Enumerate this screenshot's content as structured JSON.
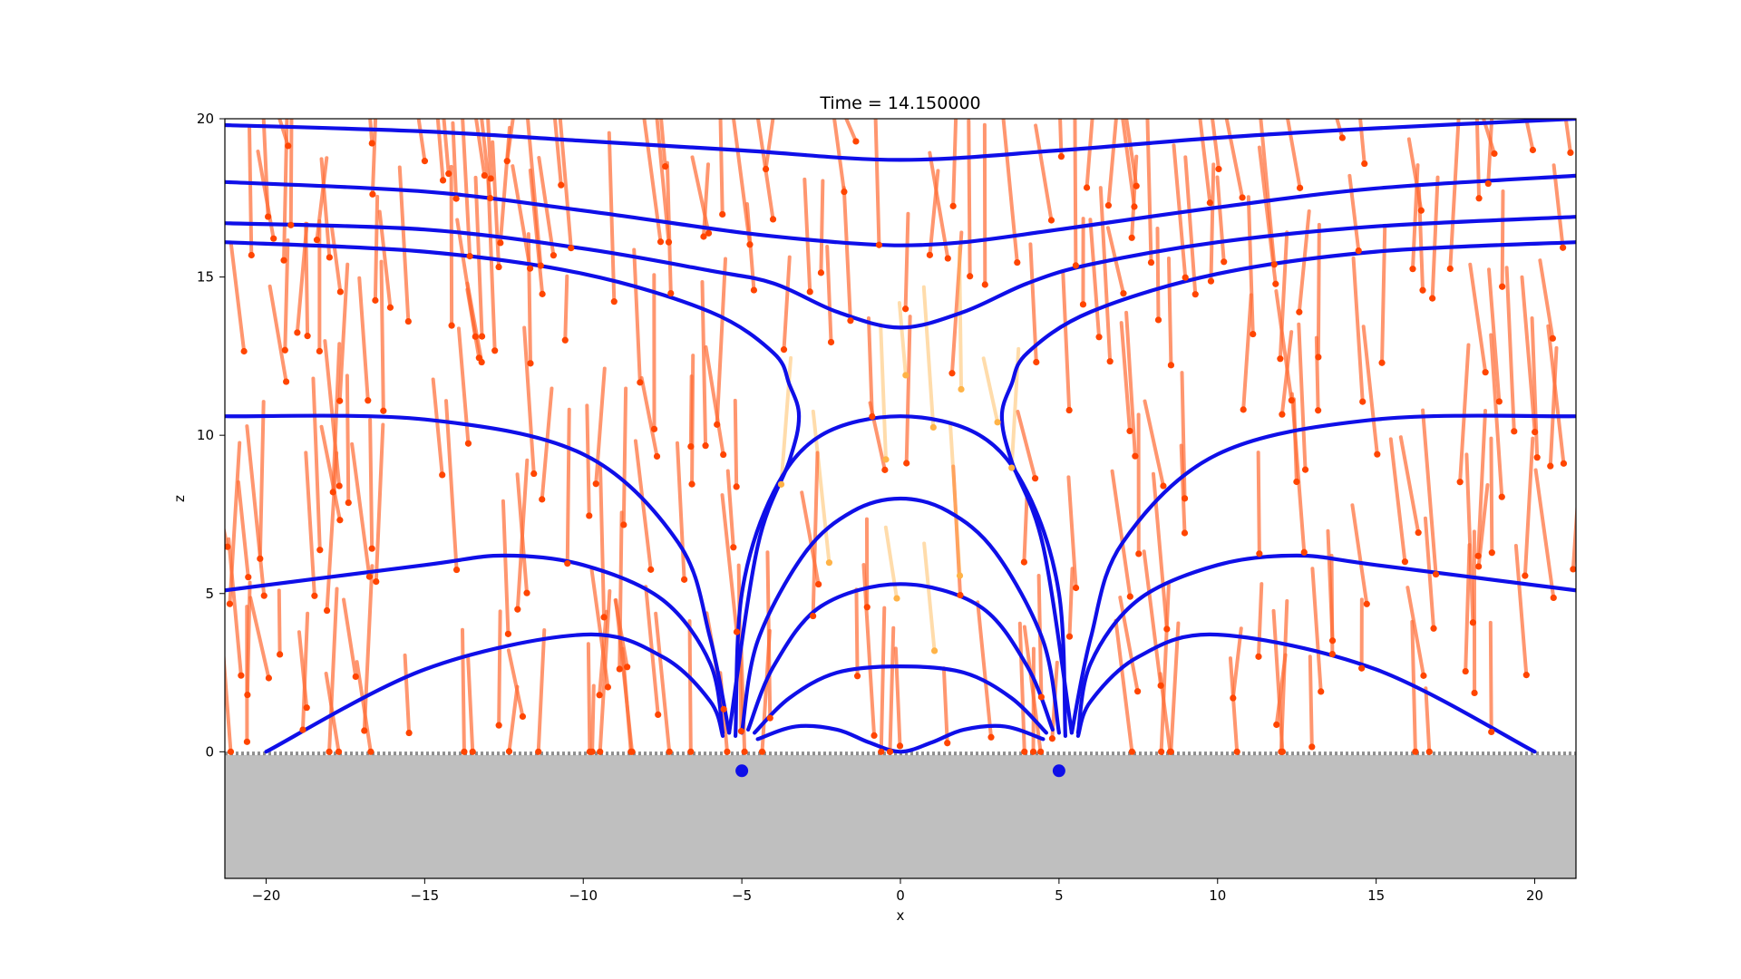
{
  "chart_data": {
    "type": "line",
    "title": "Time = 14.150000",
    "xlabel": "x",
    "ylabel": "z",
    "xlim": [
      -21.3,
      21.3
    ],
    "ylim": [
      -4.0,
      20.0
    ],
    "xticks": [
      -20,
      -15,
      -10,
      -5,
      0,
      5,
      10,
      15,
      20
    ],
    "yticks": [
      0,
      5,
      10,
      15,
      20
    ],
    "grid": false,
    "ground_color": "#bfbfbf",
    "field_line_color": "#0f0fe8",
    "particle_color": "#ff4500",
    "trail_color": "#ff6a33",
    "faded_trail_color": "#ffb347",
    "sources": [
      {
        "x": -5.0,
        "z": -0.6,
        "color": "#0f0fe8"
      },
      {
        "x": 5.0,
        "z": -0.6,
        "color": "#0f0fe8"
      }
    ],
    "series": [
      {
        "x": [
          -21.3,
          -15,
          -10,
          -5,
          0,
          5,
          10,
          15,
          21.3
        ],
        "y": [
          19.8,
          19.6,
          19.3,
          19.0,
          18.7,
          19.0,
          19.4,
          19.7,
          20.0
        ]
      },
      {
        "x": [
          -21.3,
          -15,
          -10,
          -5,
          -2,
          0,
          2,
          5,
          10,
          15,
          21.3
        ],
        "y": [
          18.0,
          17.7,
          17.1,
          16.4,
          16.1,
          16.0,
          16.1,
          16.5,
          17.2,
          17.8,
          18.2
        ]
      },
      {
        "x": [
          -21.3,
          -15,
          -10,
          -6,
          -4,
          -2,
          0,
          2,
          4,
          6,
          10,
          15,
          21.3
        ],
        "y": [
          16.7,
          16.5,
          15.9,
          15.2,
          14.8,
          13.9,
          13.4,
          13.9,
          14.8,
          15.4,
          16.1,
          16.6,
          16.9
        ]
      },
      {
        "x": [
          -21.3,
          -15,
          -10,
          -6,
          -4,
          -3.5,
          -3.2,
          -3.5,
          -4.5,
          -5.4
        ],
        "y": [
          16.1,
          15.8,
          15.1,
          13.9,
          12.6,
          11.6,
          10.6,
          9.2,
          6.5,
          0.6
        ]
      },
      {
        "x": [
          5.4,
          4.5,
          3.5,
          3.2,
          3.5,
          4,
          6,
          10,
          15,
          21.3
        ],
        "y": [
          0.6,
          6.5,
          9.2,
          10.6,
          11.6,
          12.6,
          13.9,
          15.1,
          15.8,
          16.1
        ]
      },
      {
        "x": [
          -21.3,
          -15,
          -10,
          -7,
          -6,
          -5.4
        ],
        "y": [
          10.6,
          10.5,
          9.4,
          6.6,
          3.6,
          0.6
        ]
      },
      {
        "x": [
          5.4,
          6,
          7,
          10,
          15,
          21.3
        ],
        "y": [
          0.6,
          3.6,
          6.6,
          9.4,
          10.5,
          10.6
        ]
      },
      {
        "x": [
          -21.3,
          -15,
          -12.5,
          -10,
          -7.5,
          -6,
          -5.6
        ],
        "y": [
          5.1,
          5.9,
          6.2,
          5.9,
          4.8,
          2.8,
          0.6
        ]
      },
      {
        "x": [
          5.6,
          6,
          7.5,
          10,
          12.5,
          15,
          21.3
        ],
        "y": [
          0.6,
          2.8,
          4.8,
          5.9,
          6.2,
          5.9,
          5.1
        ]
      },
      {
        "x": [
          -20,
          -15,
          -10,
          -7.5,
          -6,
          -5.6
        ],
        "y": [
          0,
          2.6,
          3.7,
          3.0,
          1.6,
          0.5
        ]
      },
      {
        "x": [
          5.6,
          6,
          7.5,
          10,
          15,
          20
        ],
        "y": [
          0.5,
          1.6,
          3.0,
          3.7,
          2.6,
          0
        ]
      },
      {
        "x": [
          -5.2,
          -5.0,
          -4.0,
          -2.5,
          0,
          2.5,
          4.0,
          5.0,
          5.2
        ],
        "y": [
          0.5,
          5.0,
          8.2,
          10.0,
          10.6,
          10.0,
          8.2,
          5.0,
          0.5
        ]
      },
      {
        "x": [
          -5.0,
          -4.5,
          -3,
          -1.5,
          0,
          1.5,
          3,
          4.5,
          5.0
        ],
        "y": [
          0.6,
          3.5,
          6.3,
          7.6,
          8.0,
          7.6,
          6.3,
          3.5,
          0.6
        ]
      },
      {
        "x": [
          -4.8,
          -4,
          -2.5,
          0,
          2.5,
          4,
          4.8
        ],
        "y": [
          0.7,
          2.7,
          4.6,
          5.3,
          4.6,
          2.7,
          0.7
        ]
      },
      {
        "x": [
          -4.6,
          -3.5,
          -2,
          0,
          2,
          3.5,
          4.6
        ],
        "y": [
          0.6,
          1.7,
          2.5,
          2.7,
          2.5,
          1.7,
          0.6
        ]
      },
      {
        "x": [
          -4.5,
          -3.3,
          -2,
          -1,
          0,
          1,
          2,
          3.3,
          4.5
        ],
        "y": [
          0.4,
          0.8,
          0.7,
          0.3,
          0.0,
          0.3,
          0.7,
          0.8,
          0.4
        ]
      }
    ]
  }
}
